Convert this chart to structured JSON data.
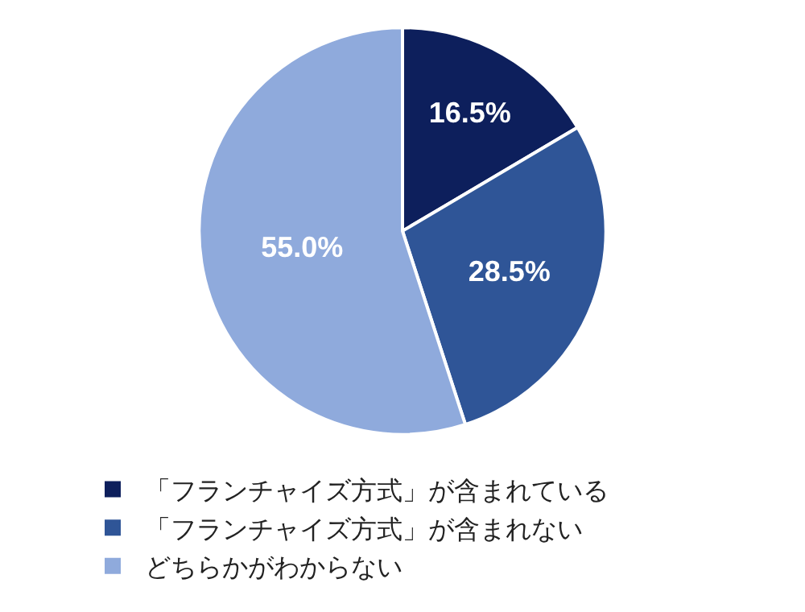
{
  "chart_data": {
    "type": "pie",
    "categories": [
      "「フランチャイズ方式」が含まれている",
      "「フランチャイズ方式」が含まれない",
      "どちらかがわからない"
    ],
    "values": [
      16.5,
      28.5,
      55.0
    ],
    "value_labels": [
      "16.5%",
      "28.5%",
      "55.0%"
    ],
    "colors": [
      "#0d1f5c",
      "#2f5597",
      "#8faadc"
    ],
    "legend": "bottom"
  }
}
